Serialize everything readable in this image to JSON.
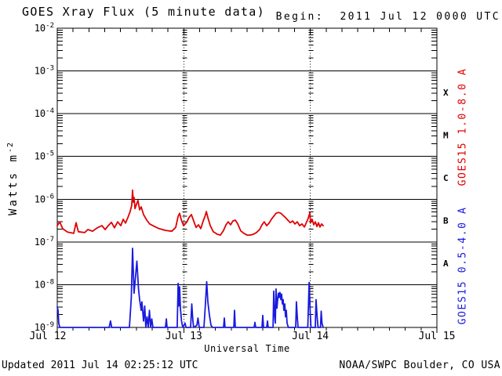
{
  "header": {
    "title": "GOES Xray Flux (5 minute data)",
    "begin": "Begin:  2011 Jul 12 0000 UTC"
  },
  "footer": {
    "updated": "Updated 2011 Jul 14 02:25:12 UTC",
    "source": "NOAA/SWPC Boulder, CO USA"
  },
  "colors": {
    "long_channel": "#e00000",
    "short_channel": "#1a1ae0",
    "axis": "#000000",
    "background": "#ffffff"
  },
  "chart_data": {
    "type": "line",
    "title": "GOES Xray Flux (5 minute data)",
    "xlabel": "Universal Time",
    "ylabel_base": "Watts m",
    "ylabel_sup": "-2",
    "y_scale": "log",
    "ylim": [
      1e-09,
      0.01
    ],
    "x_range": [
      "2011 Jul 12 0000 UTC",
      "2011 Jul 15 0000 UTC"
    ],
    "x_minor_tick_hours": 3,
    "grid": "horizontal solid lines at each decade; vertical dashed lines with log minor ticks at day boundaries Jul 13 and Jul 14",
    "y_ticks_exponents": [
      -2,
      -3,
      -4,
      -5,
      -6,
      -7,
      -8,
      -9
    ],
    "x_ticks": [
      {
        "label": "Jul 12",
        "day": 0
      },
      {
        "label": "Jul 13",
        "day": 1
      },
      {
        "label": "Jul 14",
        "day": 2
      },
      {
        "label": "Jul 15",
        "day": 3
      }
    ],
    "flare_classes": [
      {
        "label": "X",
        "log_center": -3.5
      },
      {
        "label": "M",
        "log_center": -4.5
      },
      {
        "label": "C",
        "log_center": -5.5
      },
      {
        "label": "B",
        "log_center": -6.5
      },
      {
        "label": "A",
        "log_center": -7.5
      }
    ],
    "series": [
      {
        "name": "GOES15 1.0-8.0 A",
        "color": "#e00000",
        "units": "days since 2011 Jul 12 0000 UTC, log10(Watts m^-2)",
        "points": [
          [
            0.0,
            -6.62
          ],
          [
            0.019,
            -6.53
          ],
          [
            0.043,
            -6.69
          ],
          [
            0.081,
            -6.77
          ],
          [
            0.13,
            -6.8
          ],
          [
            0.149,
            -6.55
          ],
          [
            0.167,
            -6.76
          ],
          [
            0.217,
            -6.78
          ],
          [
            0.242,
            -6.71
          ],
          [
            0.279,
            -6.75
          ],
          [
            0.316,
            -6.67
          ],
          [
            0.353,
            -6.62
          ],
          [
            0.378,
            -6.71
          ],
          [
            0.403,
            -6.62
          ],
          [
            0.428,
            -6.54
          ],
          [
            0.452,
            -6.67
          ],
          [
            0.477,
            -6.53
          ],
          [
            0.502,
            -6.62
          ],
          [
            0.521,
            -6.47
          ],
          [
            0.539,
            -6.56
          ],
          [
            0.558,
            -6.43
          ],
          [
            0.576,
            -6.29
          ],
          [
            0.589,
            -6.14
          ],
          [
            0.595,
            -5.79
          ],
          [
            0.601,
            -6.07
          ],
          [
            0.607,
            -5.96
          ],
          [
            0.614,
            -6.22
          ],
          [
            0.626,
            -6.12
          ],
          [
            0.638,
            -6.03
          ],
          [
            0.651,
            -6.25
          ],
          [
            0.663,
            -6.18
          ],
          [
            0.682,
            -6.36
          ],
          [
            0.707,
            -6.49
          ],
          [
            0.731,
            -6.58
          ],
          [
            0.769,
            -6.64
          ],
          [
            0.806,
            -6.69
          ],
          [
            0.855,
            -6.73
          ],
          [
            0.905,
            -6.75
          ],
          [
            0.936,
            -6.66
          ],
          [
            0.955,
            -6.4
          ],
          [
            0.967,
            -6.33
          ],
          [
            0.979,
            -6.47
          ],
          [
            0.998,
            -6.62
          ],
          [
            1.023,
            -6.54
          ],
          [
            1.041,
            -6.43
          ],
          [
            1.06,
            -6.36
          ],
          [
            1.078,
            -6.51
          ],
          [
            1.097,
            -6.66
          ],
          [
            1.116,
            -6.6
          ],
          [
            1.134,
            -6.69
          ],
          [
            1.153,
            -6.51
          ],
          [
            1.165,
            -6.42
          ],
          [
            1.178,
            -6.29
          ],
          [
            1.19,
            -6.43
          ],
          [
            1.209,
            -6.62
          ],
          [
            1.233,
            -6.76
          ],
          [
            1.264,
            -6.82
          ],
          [
            1.289,
            -6.84
          ],
          [
            1.314,
            -6.73
          ],
          [
            1.333,
            -6.6
          ],
          [
            1.351,
            -6.53
          ],
          [
            1.37,
            -6.6
          ],
          [
            1.388,
            -6.51
          ],
          [
            1.407,
            -6.49
          ],
          [
            1.426,
            -6.58
          ],
          [
            1.45,
            -6.74
          ],
          [
            1.475,
            -6.8
          ],
          [
            1.5,
            -6.84
          ],
          [
            1.525,
            -6.84
          ],
          [
            1.55,
            -6.82
          ],
          [
            1.574,
            -6.78
          ],
          [
            1.599,
            -6.71
          ],
          [
            1.618,
            -6.6
          ],
          [
            1.636,
            -6.53
          ],
          [
            1.655,
            -6.62
          ],
          [
            1.674,
            -6.56
          ],
          [
            1.692,
            -6.47
          ],
          [
            1.711,
            -6.4
          ],
          [
            1.729,
            -6.33
          ],
          [
            1.748,
            -6.31
          ],
          [
            1.767,
            -6.33
          ],
          [
            1.785,
            -6.38
          ],
          [
            1.804,
            -6.43
          ],
          [
            1.822,
            -6.49
          ],
          [
            1.841,
            -6.55
          ],
          [
            1.86,
            -6.51
          ],
          [
            1.878,
            -6.58
          ],
          [
            1.897,
            -6.53
          ],
          [
            1.915,
            -6.62
          ],
          [
            1.934,
            -6.58
          ],
          [
            1.953,
            -6.65
          ],
          [
            1.971,
            -6.53
          ],
          [
            1.983,
            -6.45
          ],
          [
            1.996,
            -6.32
          ],
          [
            2.002,
            -6.55
          ],
          [
            2.014,
            -6.47
          ],
          [
            2.027,
            -6.6
          ],
          [
            2.039,
            -6.53
          ],
          [
            2.052,
            -6.64
          ],
          [
            2.064,
            -6.55
          ],
          [
            2.076,
            -6.65
          ],
          [
            2.089,
            -6.58
          ],
          [
            2.101,
            -6.62
          ]
        ]
      },
      {
        "name": "GOES15 0.5-4.0 A",
        "color": "#1a1ae0",
        "units": "days since 2011 Jul 12 0000 UTC, log10(Watts m^-2)",
        "points": [
          [
            0.0,
            -8.52
          ],
          [
            0.006,
            -8.6
          ],
          [
            0.012,
            -8.9
          ],
          [
            0.02,
            -9.0
          ],
          [
            0.41,
            -9.0
          ],
          [
            0.421,
            -8.85
          ],
          [
            0.43,
            -9.0
          ],
          [
            0.57,
            -9.0
          ],
          [
            0.585,
            -8.3
          ],
          [
            0.595,
            -7.15
          ],
          [
            0.607,
            -8.2
          ],
          [
            0.629,
            -7.45
          ],
          [
            0.642,
            -8.1
          ],
          [
            0.651,
            -8.35
          ],
          [
            0.663,
            -8.6
          ],
          [
            0.669,
            -8.4
          ],
          [
            0.682,
            -8.85
          ],
          [
            0.691,
            -8.5
          ],
          [
            0.7,
            -9.0
          ],
          [
            0.71,
            -8.75
          ],
          [
            0.719,
            -9.0
          ],
          [
            0.728,
            -8.6
          ],
          [
            0.738,
            -9.0
          ],
          [
            0.747,
            -8.8
          ],
          [
            0.756,
            -9.0
          ],
          [
            0.855,
            -9.0
          ],
          [
            0.862,
            -8.8
          ],
          [
            0.868,
            -9.0
          ],
          [
            0.948,
            -9.0
          ],
          [
            0.955,
            -7.97
          ],
          [
            0.961,
            -8.5
          ],
          [
            0.967,
            -8.05
          ],
          [
            0.973,
            -8.55
          ],
          [
            0.982,
            -8.85
          ],
          [
            0.992,
            -9.0
          ],
          [
            1.01,
            -8.9
          ],
          [
            1.017,
            -9.0
          ],
          [
            1.054,
            -9.0
          ],
          [
            1.063,
            -8.45
          ],
          [
            1.072,
            -8.85
          ],
          [
            1.078,
            -9.0
          ],
          [
            1.103,
            -8.95
          ],
          [
            1.112,
            -8.78
          ],
          [
            1.122,
            -9.0
          ],
          [
            1.159,
            -9.0
          ],
          [
            1.171,
            -8.45
          ],
          [
            1.181,
            -7.93
          ],
          [
            1.19,
            -8.4
          ],
          [
            1.202,
            -8.7
          ],
          [
            1.215,
            -8.95
          ],
          [
            1.227,
            -9.0
          ],
          [
            1.314,
            -9.0
          ],
          [
            1.32,
            -8.78
          ],
          [
            1.326,
            -9.0
          ],
          [
            1.395,
            -9.0
          ],
          [
            1.401,
            -8.6
          ],
          [
            1.407,
            -9.0
          ],
          [
            1.556,
            -9.0
          ],
          [
            1.562,
            -8.88
          ],
          [
            1.568,
            -9.0
          ],
          [
            1.618,
            -9.0
          ],
          [
            1.624,
            -8.72
          ],
          [
            1.63,
            -9.0
          ],
          [
            1.655,
            -9.0
          ],
          [
            1.661,
            -8.85
          ],
          [
            1.667,
            -9.0
          ],
          [
            1.705,
            -9.0
          ],
          [
            1.711,
            -8.15
          ],
          [
            1.717,
            -8.7
          ],
          [
            1.723,
            -8.9
          ],
          [
            1.729,
            -8.1
          ],
          [
            1.736,
            -8.55
          ],
          [
            1.742,
            -8.35
          ],
          [
            1.748,
            -8.2
          ],
          [
            1.754,
            -8.3
          ],
          [
            1.76,
            -8.18
          ],
          [
            1.767,
            -8.35
          ],
          [
            1.773,
            -8.22
          ],
          [
            1.779,
            -8.45
          ],
          [
            1.785,
            -8.35
          ],
          [
            1.791,
            -8.6
          ],
          [
            1.798,
            -8.45
          ],
          [
            1.804,
            -8.75
          ],
          [
            1.81,
            -8.6
          ],
          [
            1.816,
            -8.9
          ],
          [
            1.826,
            -9.0
          ],
          [
            1.884,
            -9.0
          ],
          [
            1.89,
            -8.4
          ],
          [
            1.897,
            -8.75
          ],
          [
            1.903,
            -9.0
          ],
          [
            1.98,
            -9.0
          ],
          [
            1.99,
            -7.95
          ],
          [
            1.999,
            -8.65
          ],
          [
            2.005,
            -9.0
          ],
          [
            2.039,
            -9.0
          ],
          [
            2.045,
            -8.35
          ],
          [
            2.055,
            -8.8
          ],
          [
            2.061,
            -9.0
          ],
          [
            2.08,
            -9.0
          ],
          [
            2.086,
            -8.62
          ],
          [
            2.092,
            -8.9
          ],
          [
            2.101,
            -9.0
          ]
        ]
      }
    ]
  }
}
